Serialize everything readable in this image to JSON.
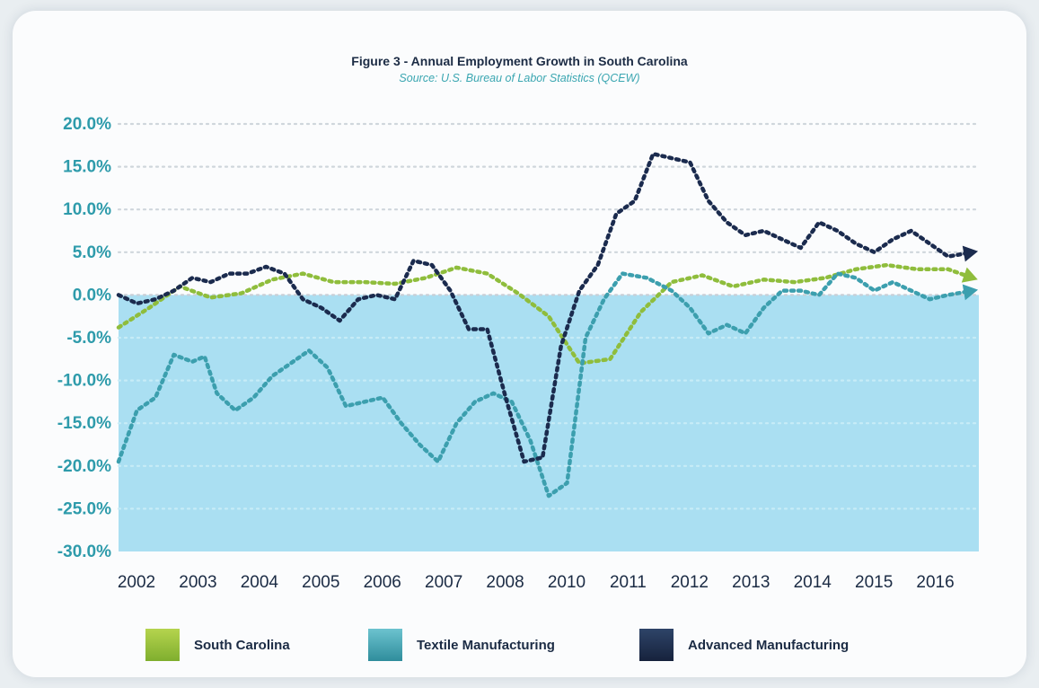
{
  "chart_data": {
    "type": "line",
    "title": "Figure 3 - Annual Employment Growth in South Carolina",
    "subtitle": "Source: U.S. Bureau of Labor Statistics (QCEW)",
    "ylim": [
      -30.0,
      20.0
    ],
    "y_ticks": [
      "20.0%",
      "15.0%",
      "10.0%",
      "5.0%",
      "0.0%",
      "-5.0%",
      "-10.0%",
      "-15.0%",
      "-20.0%",
      "-25.0%",
      "-30.0%"
    ],
    "y_tick_values": [
      20,
      15,
      10,
      5,
      0,
      -5,
      -10,
      -15,
      -20,
      -25,
      -30
    ],
    "x_labels": [
      "2002",
      "2003",
      "2004",
      "2005",
      "2006",
      "2007",
      "2008",
      "2010",
      "2011",
      "2012",
      "2013",
      "2014",
      "2015",
      "2016"
    ],
    "xlim": [
      0,
      14
    ],
    "grid": true,
    "negative_region_fill": "#aadff2",
    "legend_position": "bottom",
    "series": [
      {
        "name": "South Carolina",
        "color": "#8fbd3c",
        "x": [
          0,
          0.5,
          1,
          1.5,
          2,
          2.5,
          3,
          3.5,
          4,
          4.5,
          5,
          5.5,
          6,
          6.5,
          7,
          7.5,
          8,
          8.5,
          9,
          9.5,
          10,
          10.5,
          11,
          11.5,
          12,
          12.5,
          13,
          13.5,
          13.9
        ],
        "values": [
          -3.8,
          -1.5,
          1.0,
          -0.3,
          0.2,
          1.8,
          2.5,
          1.5,
          1.5,
          1.3,
          2.0,
          3.2,
          2.5,
          0.2,
          -2.5,
          -8.0,
          -7.5,
          -2.0,
          1.5,
          2.3,
          1.0,
          1.8,
          1.5,
          2.0,
          3.0,
          3.5,
          3.0,
          3.0,
          2.0
        ]
      },
      {
        "name": "Textile Manufacturing",
        "color": "#3c9fae",
        "x": [
          0,
          0.3,
          0.6,
          0.9,
          1.2,
          1.4,
          1.6,
          1.9,
          2.2,
          2.5,
          2.8,
          3.1,
          3.4,
          3.7,
          4.0,
          4.3,
          4.6,
          4.9,
          5.2,
          5.5,
          5.8,
          6.1,
          6.4,
          6.7,
          7.0,
          7.3,
          7.6,
          7.9,
          8.2,
          8.6,
          9.0,
          9.3,
          9.6,
          9.9,
          10.2,
          10.5,
          10.8,
          11.1,
          11.4,
          11.7,
          12.0,
          12.3,
          12.6,
          12.9,
          13.2,
          13.5,
          13.9
        ],
        "values": [
          -19.5,
          -13.5,
          -12.0,
          -7.0,
          -7.8,
          -7.2,
          -11.5,
          -13.5,
          -12.0,
          -9.5,
          -8.0,
          -6.5,
          -8.5,
          -13.0,
          -12.5,
          -12.0,
          -15.0,
          -17.5,
          -19.5,
          -15.0,
          -12.5,
          -11.5,
          -12.5,
          -17.0,
          -23.5,
          -22.0,
          -5.0,
          -0.5,
          2.5,
          2.0,
          0.5,
          -1.5,
          -4.5,
          -3.5,
          -4.5,
          -1.5,
          0.5,
          0.5,
          0.0,
          2.5,
          2.0,
          0.5,
          1.5,
          0.5,
          -0.5,
          0.0,
          0.5
        ]
      },
      {
        "name": "Advanced Manufacturing",
        "color": "#1b2b4e",
        "x": [
          0,
          0.3,
          0.6,
          0.9,
          1.2,
          1.5,
          1.8,
          2.1,
          2.4,
          2.7,
          3.0,
          3.3,
          3.6,
          3.9,
          4.2,
          4.5,
          4.8,
          5.1,
          5.4,
          5.7,
          6.0,
          6.3,
          6.6,
          6.9,
          7.2,
          7.5,
          7.8,
          8.1,
          8.4,
          8.7,
          9.0,
          9.3,
          9.6,
          9.9,
          10.2,
          10.5,
          10.8,
          11.1,
          11.4,
          11.7,
          12.0,
          12.3,
          12.6,
          12.9,
          13.2,
          13.5,
          13.9
        ],
        "values": [
          0.0,
          -1.0,
          -0.5,
          0.5,
          2.0,
          1.5,
          2.5,
          2.5,
          3.3,
          2.5,
          -0.5,
          -1.5,
          -3.0,
          -0.5,
          0.0,
          -0.5,
          4.0,
          3.5,
          0.5,
          -4.0,
          -4.0,
          -12.0,
          -19.5,
          -19.0,
          -6.0,
          0.5,
          3.5,
          9.5,
          11.0,
          16.5,
          16.0,
          15.5,
          11.0,
          8.5,
          7.0,
          7.5,
          6.5,
          5.5,
          8.5,
          7.5,
          6.0,
          5.0,
          6.5,
          7.5,
          6.0,
          4.5,
          5.0
        ]
      }
    ]
  }
}
